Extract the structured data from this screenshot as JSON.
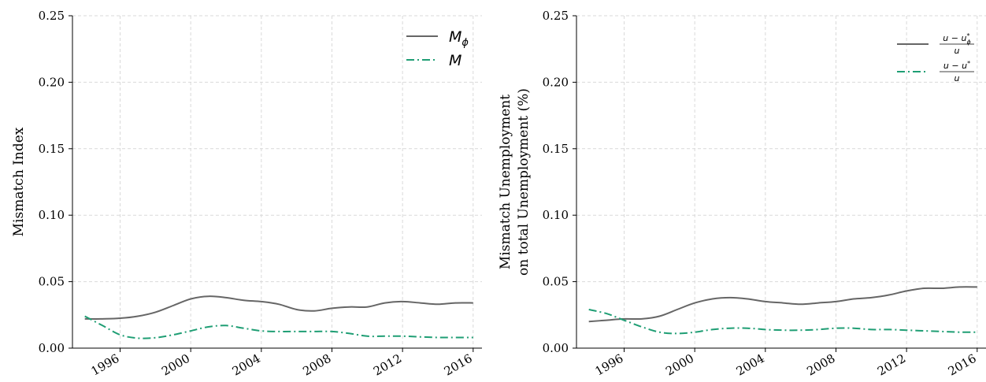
{
  "chart_data": [
    {
      "type": "line",
      "ylabel_lines": [
        "Mismatch Index"
      ],
      "xlim": [
        1993.3,
        2016.5
      ],
      "ylim": [
        0,
        0.25
      ],
      "xticks": [
        1996,
        2000,
        2004,
        2008,
        2012,
        2016
      ],
      "yticks": [
        0,
        0.05,
        0.1,
        0.15,
        0.2,
        0.25
      ],
      "ytick_labels": [
        "0.00",
        "0.05",
        "0.10",
        "0.15",
        "0.20",
        "0.25"
      ],
      "grid": true,
      "legend_position": "top-right",
      "series": [
        {
          "legend_main": "M",
          "legend_sub": "ϕ",
          "color": "#666666",
          "style": "solid",
          "x": [
            1994,
            1995,
            1996,
            1997,
            1998,
            1999,
            2000,
            2001,
            2002,
            2003,
            2004,
            2005,
            2006,
            2007,
            2008,
            2009,
            2010,
            2011,
            2012,
            2013,
            2014,
            2015,
            2016
          ],
          "y": [
            0.022,
            0.022,
            0.0225,
            0.024,
            0.027,
            0.032,
            0.037,
            0.039,
            0.038,
            0.036,
            0.035,
            0.033,
            0.029,
            0.028,
            0.03,
            0.031,
            0.031,
            0.034,
            0.035,
            0.034,
            0.033,
            0.034,
            0.034
          ]
        },
        {
          "legend_main": "M",
          "legend_sub": "",
          "color": "#1f9e74",
          "style": "dashdot",
          "x": [
            1994,
            1995,
            1996,
            1997,
            1998,
            1999,
            2000,
            2001,
            2002,
            2003,
            2004,
            2005,
            2006,
            2007,
            2008,
            2009,
            2010,
            2011,
            2012,
            2013,
            2014,
            2015,
            2016
          ],
          "y": [
            0.024,
            0.017,
            0.01,
            0.0075,
            0.0078,
            0.01,
            0.013,
            0.016,
            0.017,
            0.015,
            0.013,
            0.0125,
            0.0125,
            0.0125,
            0.0125,
            0.011,
            0.009,
            0.009,
            0.009,
            0.0085,
            0.008,
            0.008,
            0.008
          ]
        }
      ]
    },
    {
      "type": "line",
      "ylabel_lines": [
        "Mismatch Unemployment",
        "on total Unemployment  (%)"
      ],
      "xlim": [
        1993.3,
        2016.5
      ],
      "ylim": [
        0,
        0.25
      ],
      "xticks": [
        1996,
        2000,
        2004,
        2008,
        2012,
        2016
      ],
      "yticks": [
        0,
        0.05,
        0.1,
        0.15,
        0.2,
        0.25
      ],
      "ytick_labels": [
        "0.00",
        "0.05",
        "0.10",
        "0.15",
        "0.20",
        "0.25"
      ],
      "grid": true,
      "legend_position": "top-right",
      "series": [
        {
          "legend_num": "u − u",
          "legend_num_sup": "*",
          "legend_num_sub": "ϕ",
          "legend_den": "u",
          "color": "#666666",
          "style": "solid",
          "x": [
            1994,
            1995,
            1996,
            1997,
            1998,
            1999,
            2000,
            2001,
            2002,
            2003,
            2004,
            2005,
            2006,
            2007,
            2008,
            2009,
            2010,
            2011,
            2012,
            2013,
            2014,
            2015,
            2016
          ],
          "y": [
            0.02,
            0.021,
            0.022,
            0.022,
            0.024,
            0.029,
            0.034,
            0.037,
            0.038,
            0.037,
            0.035,
            0.034,
            0.033,
            0.034,
            0.035,
            0.037,
            0.038,
            0.04,
            0.043,
            0.045,
            0.045,
            0.046,
            0.046
          ]
        },
        {
          "legend_num": "u − u",
          "legend_num_sup": "*",
          "legend_num_sub": "",
          "legend_den": "u",
          "color": "#1f9e74",
          "style": "dashdot",
          "x": [
            1994,
            1995,
            1996,
            1997,
            1998,
            1999,
            2000,
            2001,
            2002,
            2003,
            2004,
            2005,
            2006,
            2007,
            2008,
            2009,
            2010,
            2011,
            2012,
            2013,
            2014,
            2015,
            2016
          ],
          "y": [
            0.029,
            0.026,
            0.021,
            0.016,
            0.012,
            0.011,
            0.012,
            0.014,
            0.015,
            0.015,
            0.014,
            0.0135,
            0.0135,
            0.014,
            0.015,
            0.015,
            0.014,
            0.014,
            0.0135,
            0.013,
            0.0125,
            0.012,
            0.012
          ]
        }
      ]
    }
  ]
}
